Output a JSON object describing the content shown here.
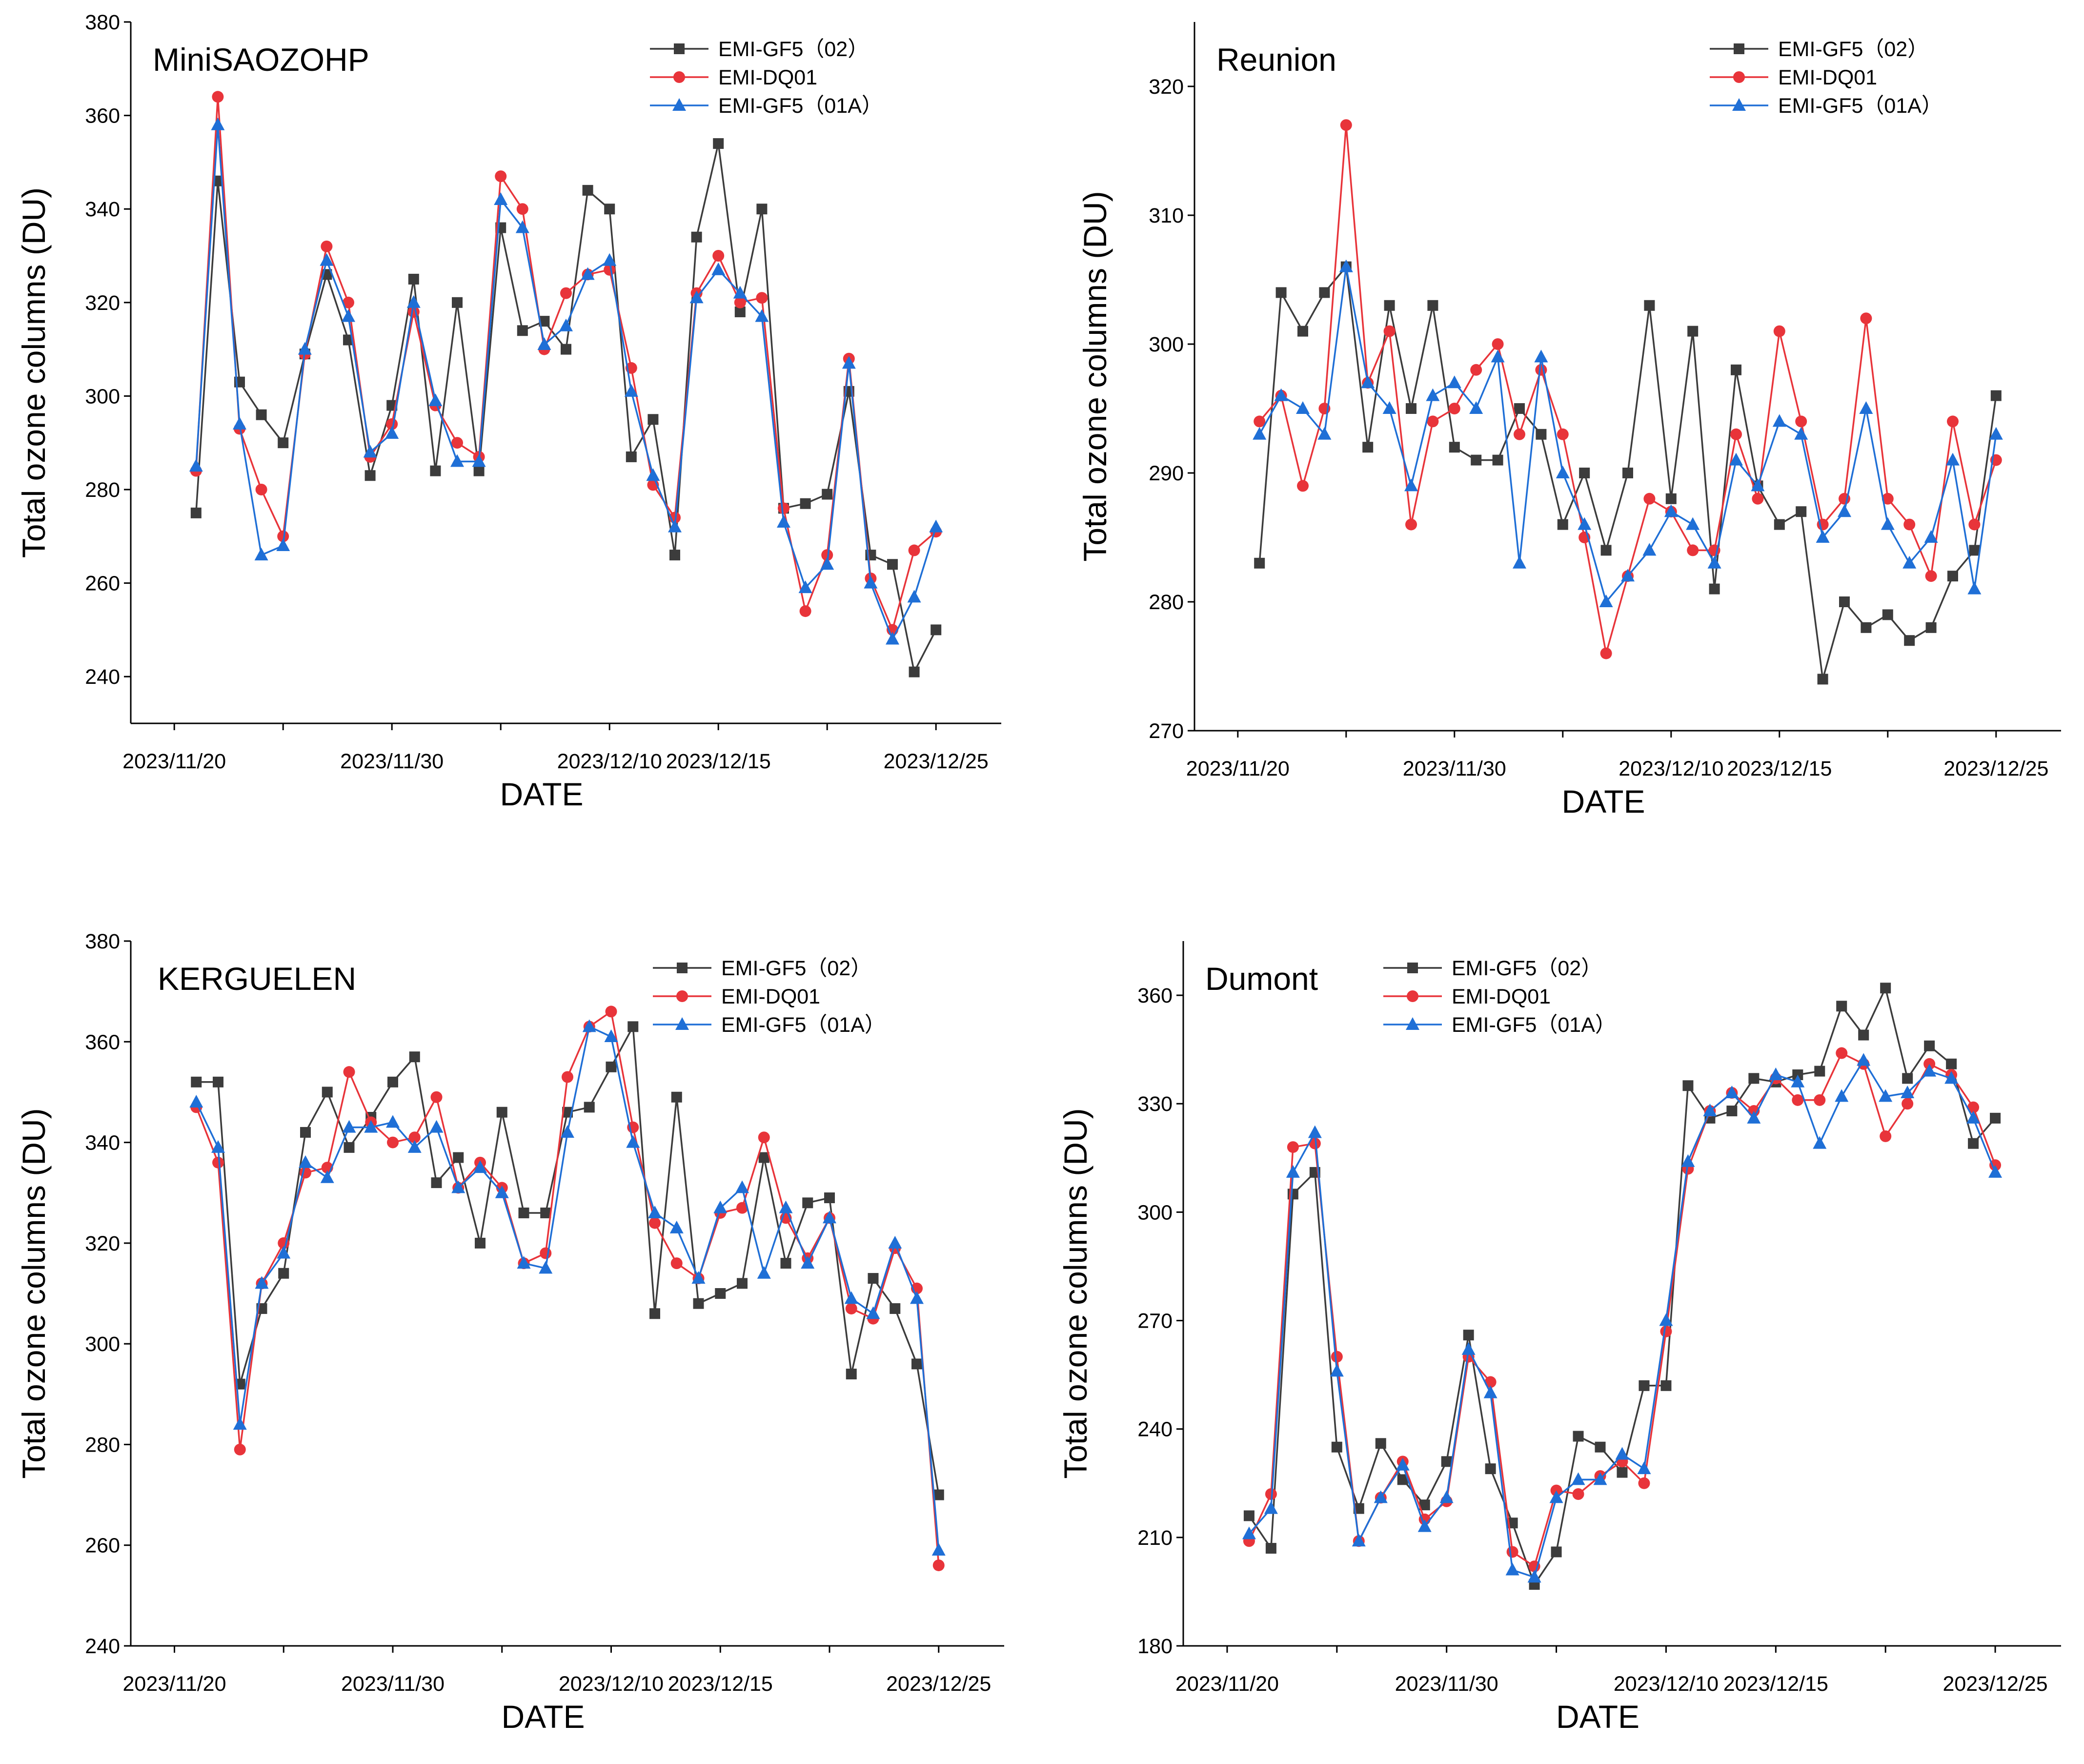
{
  "chart_data": [
    {
      "type": "line",
      "title": "MiniSAOZOHP",
      "xlabel": "DATE",
      "ylabel": "Total ozone columns (DU)",
      "ylim": [
        230,
        380
      ],
      "yticks": [
        240,
        260,
        280,
        300,
        320,
        340,
        360,
        380
      ],
      "xlim": [
        -2,
        38
      ],
      "xticks": [
        0,
        10,
        20,
        25,
        35
      ],
      "xtick_labels": [
        "2023/11/20",
        "2023/11/30",
        "2023/12/10",
        "2023/12/15",
        "2023/12/25"
      ],
      "legend_position": "top-right",
      "x": [
        1,
        2,
        3,
        4,
        5,
        6,
        7,
        8,
        9,
        10,
        11,
        12,
        13,
        14,
        15,
        16,
        17,
        18,
        19,
        20,
        21,
        22,
        23,
        24,
        25,
        26,
        27,
        28,
        29,
        30,
        31,
        32,
        33,
        34,
        35
      ],
      "series": [
        {
          "name": "EMI-GF5（02）",
          "color": "#3c3c3c",
          "marker": "square",
          "values": [
            275,
            346,
            303,
            296,
            290,
            309,
            326,
            312,
            283,
            298,
            325,
            284,
            320,
            284,
            336,
            314,
            316,
            310,
            344,
            340,
            287,
            295,
            266,
            334,
            354,
            318,
            340,
            276,
            277,
            279,
            301,
            266,
            264,
            241,
            250
          ]
        },
        {
          "name": "EMI-DQ01",
          "color": "#e8343a",
          "marker": "circle",
          "values": [
            284,
            364,
            293,
            280,
            270,
            309,
            332,
            320,
            287,
            294,
            318,
            298,
            290,
            287,
            347,
            340,
            310,
            322,
            326,
            327,
            306,
            281,
            274,
            322,
            330,
            320,
            321,
            276,
            254,
            266,
            308,
            261,
            250,
            267,
            271
          ]
        },
        {
          "name": "EMI-GF5（01A）",
          "color": "#1f6fd6",
          "marker": "triangle",
          "values": [
            285,
            358,
            294,
            266,
            268,
            310,
            329,
            317,
            288,
            292,
            320,
            299,
            286,
            286,
            342,
            336,
            311,
            315,
            326,
            329,
            301,
            283,
            272,
            321,
            327,
            322,
            317,
            273,
            259,
            264,
            307,
            260,
            248,
            257,
            272
          ]
        }
      ]
    },
    {
      "type": "line",
      "title": "Reunion",
      "xlabel": "DATE",
      "ylabel": "Total ozone columns (DU)",
      "ylim": [
        270,
        325
      ],
      "yticks": [
        270,
        280,
        290,
        300,
        310,
        320
      ],
      "xlim": [
        -2,
        38
      ],
      "xticks": [
        0,
        10,
        20,
        25,
        35
      ],
      "xtick_labels": [
        "2023/11/20",
        "2023/11/30",
        "2023/12/10",
        "2023/12/15",
        "2023/12/25"
      ],
      "legend_position": "top-right",
      "x": [
        1,
        2,
        3,
        4,
        5,
        6,
        7,
        8,
        9,
        10,
        11,
        12,
        13,
        14,
        15,
        16,
        17,
        18,
        19,
        20,
        21,
        22,
        23,
        24,
        25,
        26,
        27,
        28,
        29,
        30,
        31,
        32,
        33,
        34,
        35
      ],
      "series": [
        {
          "name": "EMI-GF5（02）",
          "color": "#3c3c3c",
          "marker": "square",
          "values": [
            283,
            304,
            301,
            304,
            306,
            292,
            303,
            295,
            303,
            292,
            291,
            291,
            295,
            293,
            286,
            290,
            284,
            290,
            303,
            288,
            301,
            281,
            298,
            289,
            286,
            287,
            274,
            280,
            278,
            279,
            277,
            278,
            282,
            284,
            296
          ]
        },
        {
          "name": "EMI-DQ01",
          "color": "#e8343a",
          "marker": "circle",
          "values": [
            294,
            296,
            289,
            295,
            317,
            297,
            301,
            286,
            294,
            295,
            298,
            300,
            293,
            298,
            293,
            285,
            276,
            282,
            288,
            287,
            284,
            284,
            293,
            288,
            301,
            294,
            286,
            288,
            302,
            288,
            286,
            282,
            294,
            286,
            291
          ]
        },
        {
          "name": "EMI-GF5（01A）",
          "color": "#1f6fd6",
          "marker": "triangle",
          "values": [
            293,
            296,
            295,
            293,
            306,
            297,
            295,
            289,
            296,
            297,
            295,
            299,
            283,
            299,
            290,
            286,
            280,
            282,
            284,
            287,
            286,
            283,
            291,
            289,
            294,
            293,
            285,
            287,
            295,
            286,
            283,
            285,
            291,
            281,
            293
          ]
        }
      ]
    },
    {
      "type": "line",
      "title": "KERGUELEN",
      "xlabel": "DATE",
      "ylabel": "Total ozone columns (DU)",
      "ylim": [
        240,
        380
      ],
      "yticks": [
        240,
        260,
        280,
        300,
        320,
        340,
        360,
        380
      ],
      "xlim": [
        -2,
        38
      ],
      "xticks": [
        0,
        10,
        20,
        25,
        35
      ],
      "xtick_labels": [
        "2023/11/20",
        "2023/11/30",
        "2023/12/10",
        "2023/12/15",
        "2023/12/25"
      ],
      "legend_position": "top-right",
      "x": [
        1,
        2,
        3,
        4,
        5,
        6,
        7,
        8,
        9,
        10,
        11,
        12,
        13,
        14,
        15,
        16,
        17,
        18,
        19,
        20,
        21,
        22,
        23,
        24,
        25,
        26,
        27,
        28,
        29,
        30,
        31,
        32,
        33,
        34,
        35
      ],
      "series": [
        {
          "name": "EMI-GF5（02）",
          "color": "#3c3c3c",
          "marker": "square",
          "values": [
            352,
            352,
            292,
            307,
            314,
            342,
            350,
            339,
            345,
            352,
            357,
            332,
            337,
            320,
            346,
            326,
            326,
            346,
            347,
            355,
            363,
            306,
            349,
            308,
            310,
            312,
            337,
            316,
            328,
            329,
            294,
            313,
            307,
            296,
            270
          ]
        },
        {
          "name": "EMI-DQ01",
          "color": "#e8343a",
          "marker": "circle",
          "values": [
            347,
            336,
            279,
            312,
            320,
            334,
            335,
            354,
            344,
            340,
            341,
            349,
            331,
            336,
            331,
            316,
            318,
            353,
            363,
            366,
            343,
            324,
            316,
            313,
            326,
            327,
            341,
            325,
            317,
            325,
            307,
            305,
            319,
            311,
            256
          ]
        },
        {
          "name": "EMI-GF5（01A）",
          "color": "#1f6fd6",
          "marker": "triangle",
          "values": [
            348,
            339,
            284,
            312,
            318,
            336,
            333,
            343,
            343,
            344,
            339,
            343,
            331,
            335,
            330,
            316,
            315,
            342,
            363,
            361,
            340,
            326,
            323,
            313,
            327,
            331,
            314,
            327,
            316,
            325,
            309,
            306,
            320,
            309,
            259
          ]
        }
      ]
    },
    {
      "type": "line",
      "title": "Dumont",
      "xlabel": "DATE",
      "ylabel": "Total ozone columns (DU)",
      "ylim": [
        180,
        375
      ],
      "yticks": [
        180,
        210,
        240,
        270,
        300,
        330,
        360
      ],
      "xlim": [
        -2,
        38
      ],
      "xticks": [
        0,
        10,
        20,
        25,
        35
      ],
      "xtick_labels": [
        "2023/11/20",
        "2023/11/30",
        "2023/12/10",
        "2023/12/15",
        "2023/12/25"
      ],
      "legend_position": "top-left",
      "x": [
        1,
        2,
        3,
        4,
        5,
        6,
        7,
        8,
        9,
        10,
        11,
        12,
        13,
        14,
        15,
        16,
        17,
        18,
        19,
        20,
        21,
        22,
        23,
        24,
        25,
        26,
        27,
        28,
        29,
        30,
        31,
        32,
        33,
        34,
        35
      ],
      "series": [
        {
          "name": "EMI-GF5（02）",
          "color": "#3c3c3c",
          "marker": "square",
          "values": [
            216,
            207,
            305,
            311,
            235,
            218,
            236,
            226,
            219,
            231,
            266,
            229,
            214,
            197,
            206,
            238,
            235,
            228,
            252,
            252,
            335,
            326,
            328,
            337,
            336,
            338,
            339,
            357,
            349,
            362,
            337,
            346,
            341,
            319,
            326
          ]
        },
        {
          "name": "EMI-DQ01",
          "color": "#e8343a",
          "marker": "circle",
          "values": [
            209,
            222,
            318,
            319,
            260,
            209,
            221,
            231,
            215,
            220,
            260,
            253,
            206,
            202,
            223,
            222,
            227,
            231,
            225,
            267,
            312,
            328,
            333,
            328,
            337,
            331,
            331,
            344,
            341,
            321,
            330,
            341,
            338,
            329,
            313
          ]
        },
        {
          "name": "EMI-GF5（01A）",
          "color": "#1f6fd6",
          "marker": "triangle",
          "values": [
            211,
            218,
            311,
            322,
            256,
            209,
            221,
            230,
            213,
            221,
            262,
            250,
            201,
            199,
            221,
            226,
            226,
            233,
            229,
            270,
            314,
            328,
            333,
            326,
            338,
            336,
            319,
            332,
            342,
            332,
            333,
            339,
            337,
            326,
            311
          ]
        }
      ]
    }
  ]
}
